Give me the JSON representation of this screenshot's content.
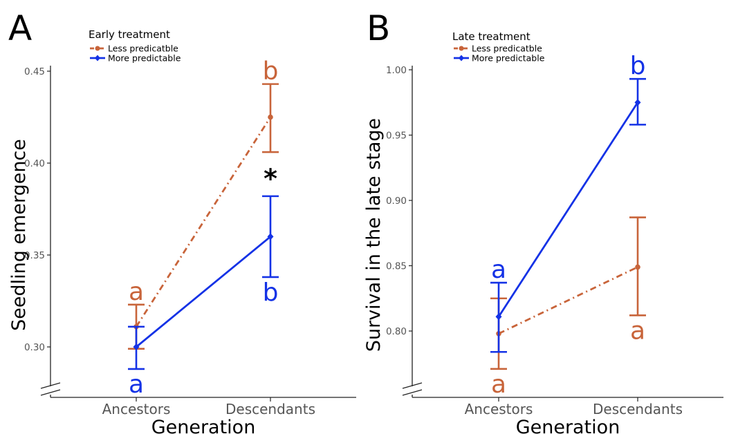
{
  "colors": {
    "less": "#c8643a",
    "more": "#1432e6",
    "axis": "#222222",
    "tick": "#555555",
    "star": "#000000"
  },
  "chart_data": [
    {
      "panel_label": "A",
      "type": "line",
      "legend_title": "Early treatment",
      "legend_position": "top-left",
      "xlabel": "Generation",
      "ylabel": "Seedling emergence",
      "categories": [
        "Ancestors",
        "Descendants"
      ],
      "ylim": [
        0.272,
        0.455
      ],
      "yticks": [
        0.3,
        0.35,
        0.4,
        0.45
      ],
      "ytick_labels": [
        "0.30",
        "0.35",
        "0.40",
        "0.45"
      ],
      "axis_break": true,
      "grid": false,
      "series": [
        {
          "name": "Less predicatble",
          "key": "less",
          "line": "dashdot",
          "marker": "circle",
          "values": [
            0.311,
            0.425
          ],
          "errors": [
            [
              0.299,
              0.323
            ],
            [
              0.406,
              0.443
            ]
          ],
          "letters": [
            "a",
            "b"
          ],
          "letter_pos": [
            "above",
            "above"
          ]
        },
        {
          "name": "More predictable",
          "key": "more",
          "line": "solid",
          "marker": "diamond",
          "values": [
            0.3,
            0.36
          ],
          "errors": [
            [
              0.288,
              0.311
            ],
            [
              0.338,
              0.382
            ]
          ],
          "letters": [
            "a",
            "b"
          ],
          "letter_pos": [
            "below",
            "below"
          ]
        }
      ],
      "annotations": [
        {
          "text": "*",
          "category": "Descendants",
          "y": 0.395
        }
      ]
    },
    {
      "panel_label": "B",
      "type": "line",
      "legend_title": "Late treatment",
      "legend_position": "top-left",
      "xlabel": "Generation",
      "ylabel": "Survival in the late stage",
      "categories": [
        "Ancestors",
        "Descendants"
      ],
      "ylim": [
        0.75,
        1.002
      ],
      "yticks": [
        0.8,
        0.85,
        0.9,
        0.95,
        1.0
      ],
      "ytick_labels": [
        "0.80",
        "0.85",
        "0.90",
        "0.95",
        "1.00"
      ],
      "axis_break": true,
      "grid": false,
      "series": [
        {
          "name": "Less predicatble",
          "key": "less",
          "line": "dashdot",
          "marker": "circle",
          "values": [
            0.798,
            0.849
          ],
          "errors": [
            [
              0.771,
              0.825
            ],
            [
              0.812,
              0.887
            ]
          ],
          "letters": [
            "a",
            "a"
          ],
          "letter_pos": [
            "below",
            "below"
          ]
        },
        {
          "name": "More predictable",
          "key": "more",
          "line": "solid",
          "marker": "diamond",
          "values": [
            0.811,
            0.975
          ],
          "errors": [
            [
              0.784,
              0.837
            ],
            [
              0.958,
              0.993
            ]
          ],
          "letters": [
            "a",
            "b"
          ],
          "letter_pos": [
            "above",
            "above"
          ]
        }
      ],
      "annotations": []
    }
  ]
}
